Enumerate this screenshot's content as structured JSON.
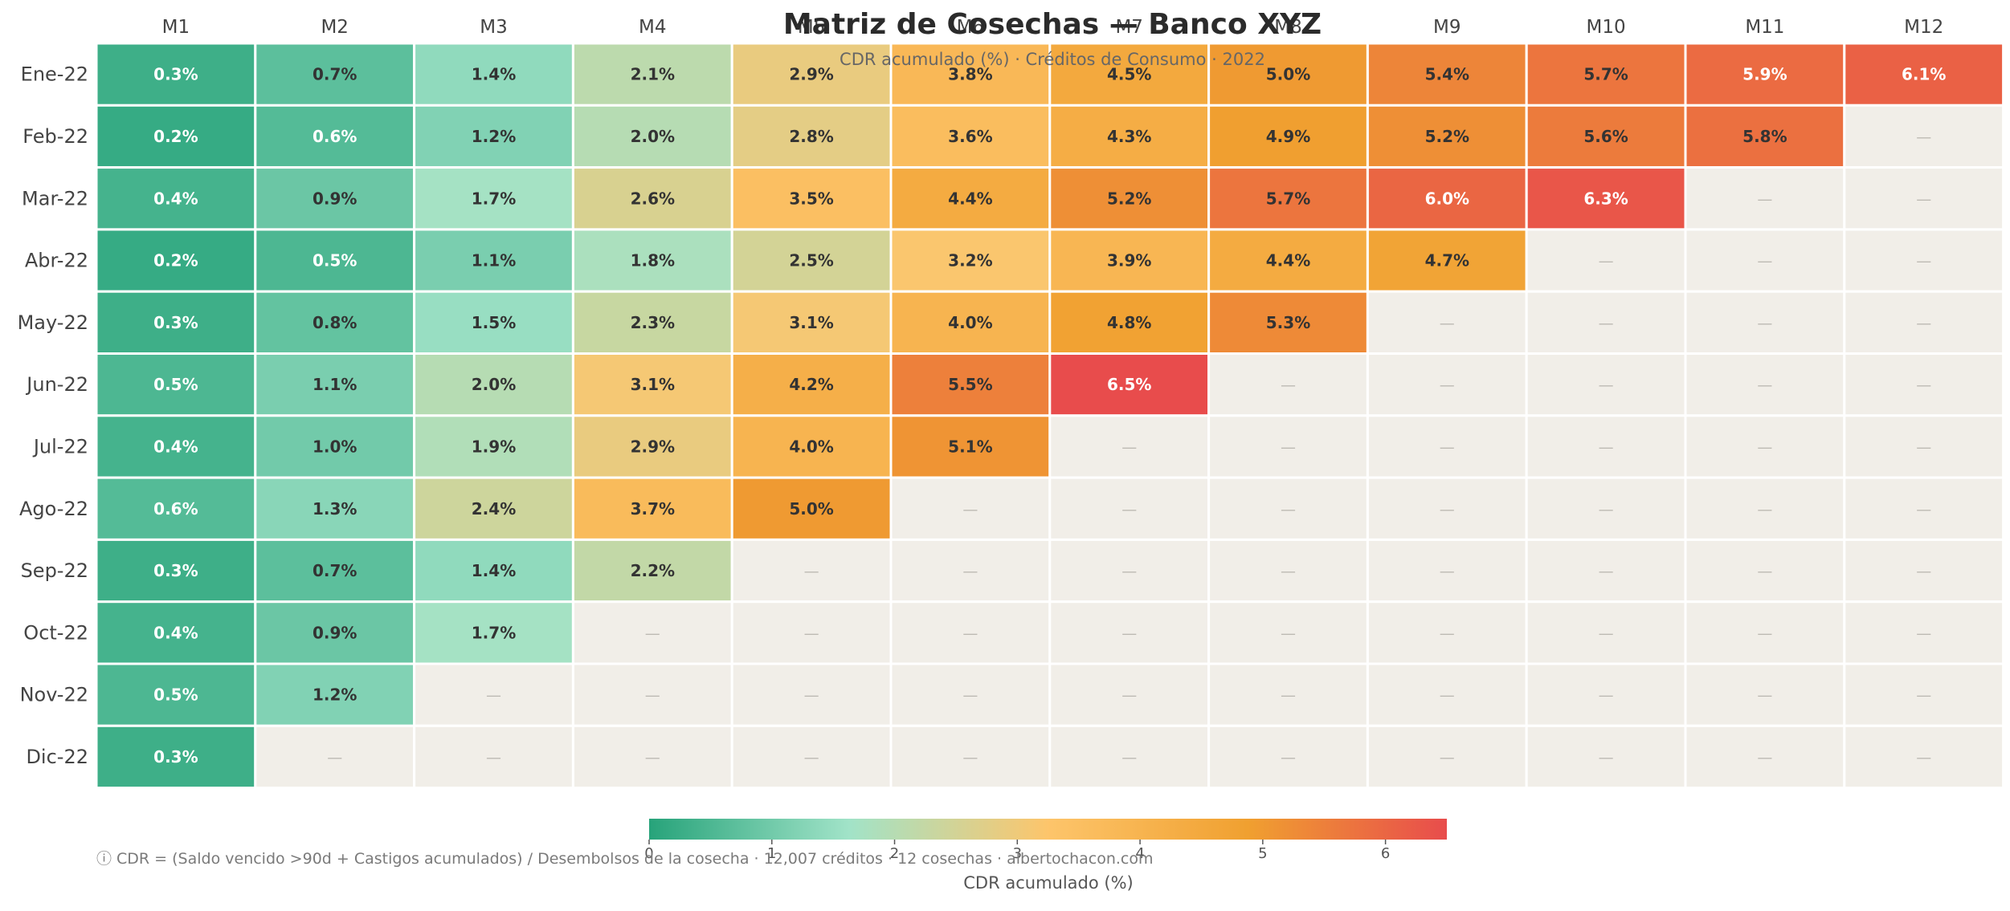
{
  "title": "Matriz de Cosechas — Banco XYZ",
  "subtitle": "CDR acumulado (%) · Créditos de Consumo · 2022",
  "footnote": "ⓘ CDR = (Saldo vencido >90d + Castigos acumulados) / Desembolsos de la cosecha   ·   12,007 créditos · 12 cosechas   ·   albertochacon.com",
  "chart_data": {
    "type": "heatmap",
    "title": "Matriz de Cosechas — Banco XYZ",
    "subtitle": "CDR acumulado (%) · Créditos de Consumo · 2022",
    "columns": [
      "M1",
      "M2",
      "M3",
      "M4",
      "M5",
      "M6",
      "M7",
      "M8",
      "M9",
      "M10",
      "M11",
      "M12"
    ],
    "rows": [
      "Ene-22",
      "Feb-22",
      "Mar-22",
      "Abr-22",
      "May-22",
      "Jun-22",
      "Jul-22",
      "Ago-22",
      "Sep-22",
      "Oct-22",
      "Nov-22",
      "Dic-22"
    ],
    "values": [
      [
        0.3,
        0.7,
        1.4,
        2.1,
        2.9,
        3.8,
        4.5,
        5.0,
        5.4,
        5.7,
        5.9,
        6.1
      ],
      [
        0.2,
        0.6,
        1.2,
        2.0,
        2.8,
        3.6,
        4.3,
        4.9,
        5.2,
        5.6,
        5.8,
        null
      ],
      [
        0.4,
        0.9,
        1.7,
        2.6,
        3.5,
        4.4,
        5.2,
        5.7,
        6.0,
        6.3,
        null,
        null
      ],
      [
        0.2,
        0.5,
        1.1,
        1.8,
        2.5,
        3.2,
        3.9,
        4.4,
        4.7,
        null,
        null,
        null
      ],
      [
        0.3,
        0.8,
        1.5,
        2.3,
        3.1,
        4.0,
        4.8,
        5.3,
        null,
        null,
        null,
        null
      ],
      [
        0.5,
        1.1,
        2.0,
        3.1,
        4.2,
        5.5,
        6.5,
        null,
        null,
        null,
        null,
        null
      ],
      [
        0.4,
        1.0,
        1.9,
        2.9,
        4.0,
        5.1,
        null,
        null,
        null,
        null,
        null,
        null
      ],
      [
        0.6,
        1.3,
        2.4,
        3.7,
        5.0,
        null,
        null,
        null,
        null,
        null,
        null,
        null
      ],
      [
        0.3,
        0.7,
        1.4,
        2.2,
        null,
        null,
        null,
        null,
        null,
        null,
        null,
        null
      ],
      [
        0.4,
        0.9,
        1.7,
        null,
        null,
        null,
        null,
        null,
        null,
        null,
        null,
        null
      ],
      [
        0.5,
        1.2,
        null,
        null,
        null,
        null,
        null,
        null,
        null,
        null,
        null,
        null
      ],
      [
        0.3,
        null,
        null,
        null,
        null,
        null,
        null,
        null,
        null,
        null,
        null,
        null
      ]
    ],
    "value_suffix": "%",
    "empty_label": "—",
    "colorbar": {
      "label": "CDR acumulado (%)",
      "min": 0,
      "max": 6.5,
      "ticks": [
        0,
        1,
        2,
        3,
        4,
        5,
        6
      ]
    },
    "colors": {
      "scale": [
        "#27a37a",
        "#a1e3c8",
        "#fdc56b",
        "#f0a030",
        "#e84c4c"
      ],
      "empty": "#f1eee8",
      "light_text": "#ffffff",
      "dark_text": "#333333",
      "empty_text": "#bdbab3"
    }
  }
}
